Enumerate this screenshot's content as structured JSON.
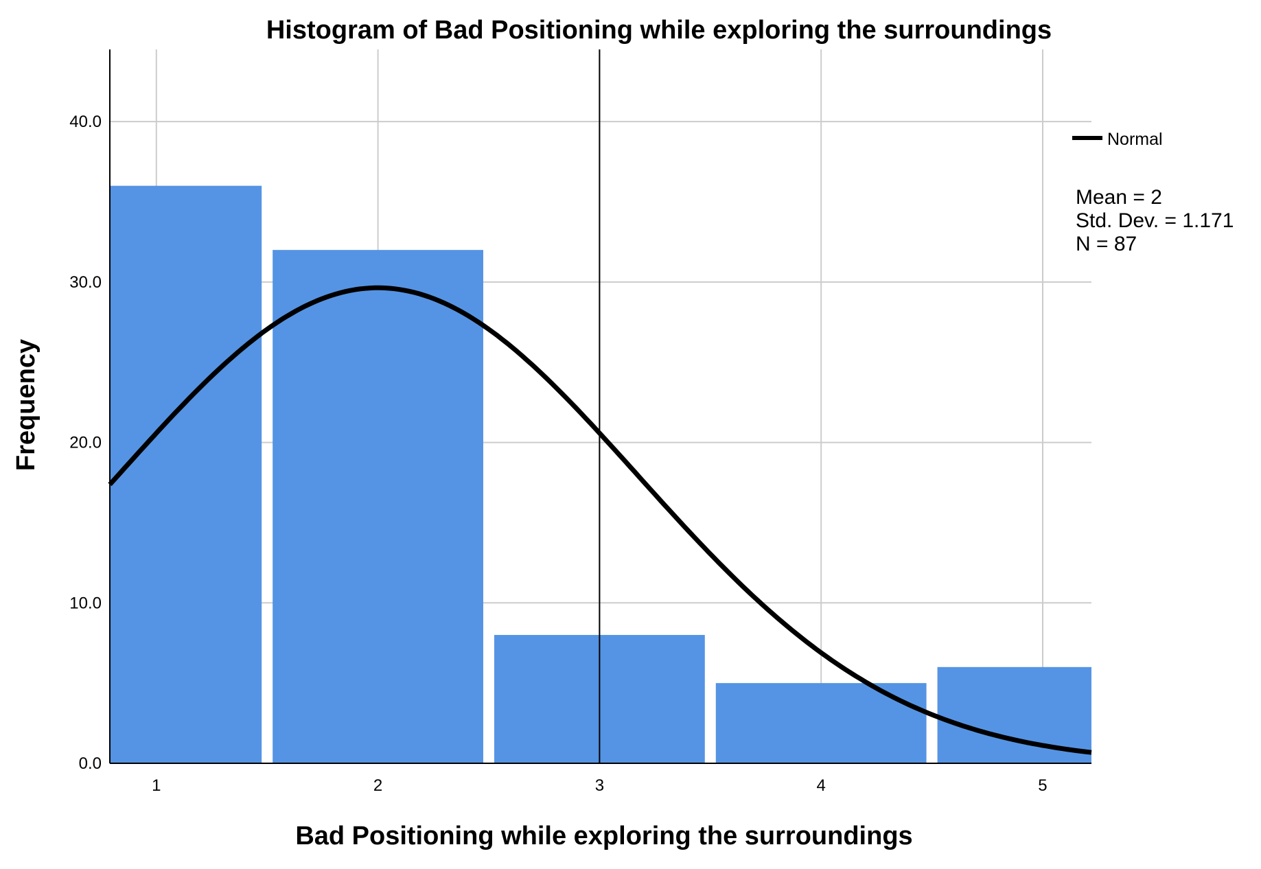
{
  "chart_data": {
    "type": "bar",
    "title": "Histogram of Bad Positioning while exploring the surroundings",
    "xlabel": "Bad Positioning while exploring the surroundings",
    "ylabel": "Frequency",
    "categories": [
      "1",
      "2",
      "3",
      "4",
      "5"
    ],
    "values": [
      36,
      32,
      8,
      5,
      6
    ],
    "y_ticks": [
      "0.0",
      "10.0",
      "20.0",
      "30.0",
      "40.0"
    ],
    "ylim": [
      0,
      44.5
    ],
    "xlim": [
      0.79,
      5.22
    ],
    "grid": true,
    "reference_line_x": 3,
    "normal_curve": {
      "mean": 2,
      "std": 1.171,
      "n": 87
    },
    "legend": {
      "label": "Normal",
      "position": "top-right"
    },
    "stats": [
      "Mean = 2",
      "Std. Dev. = 1.171",
      "N = 87"
    ],
    "colors": {
      "bar": "#5594E4",
      "curve": "#000000",
      "grid": "#CCCCCC"
    }
  }
}
